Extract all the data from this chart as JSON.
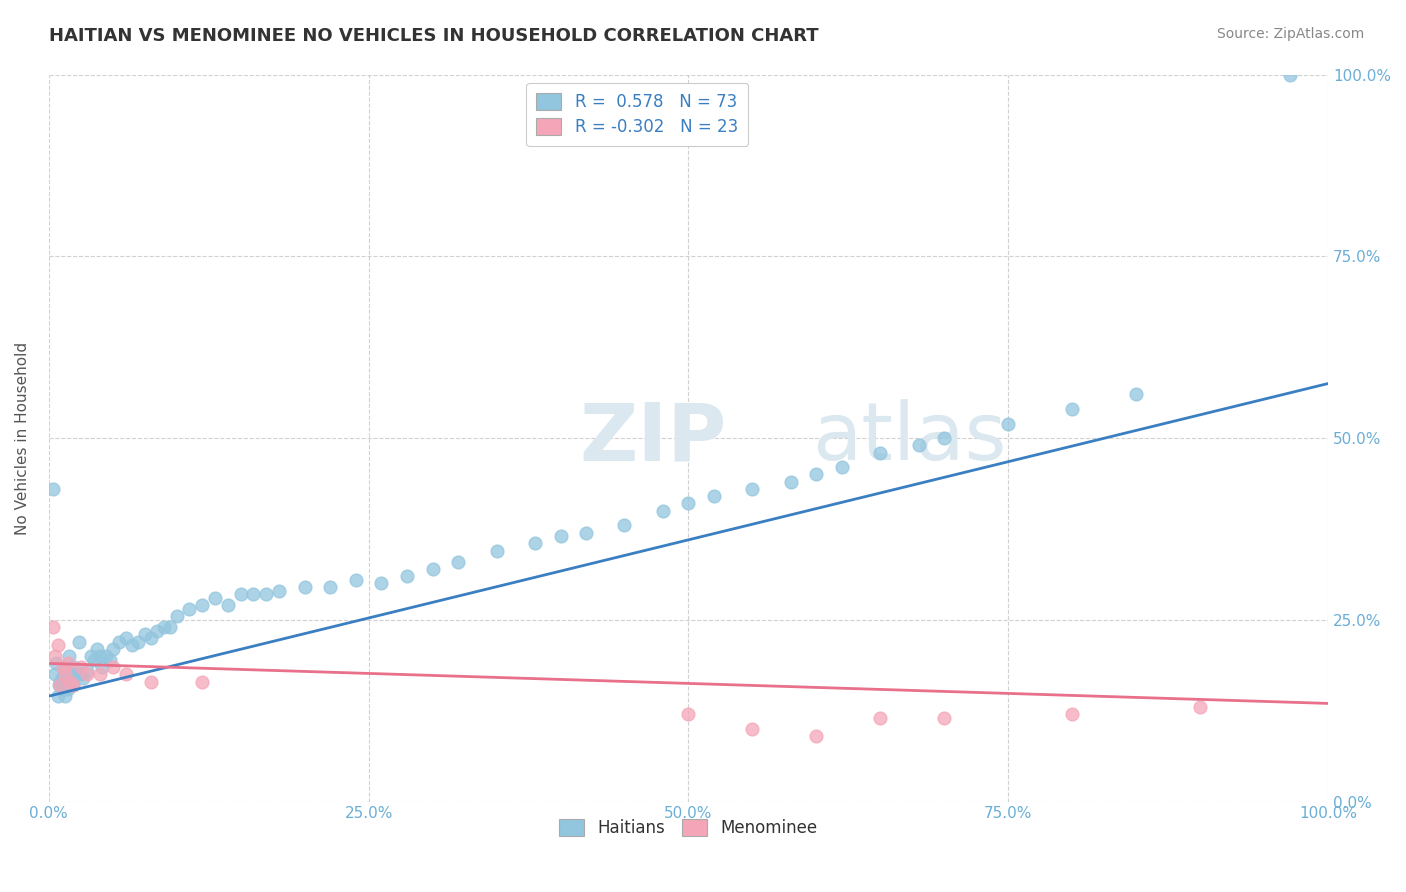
{
  "title": "HAITIAN VS MENOMINEE NO VEHICLES IN HOUSEHOLD CORRELATION CHART",
  "source": "Source: ZipAtlas.com",
  "ylabel": "No Vehicles in Household",
  "watermark_top": "ZIP",
  "watermark_bot": "atlas",
  "legend_r_blue": "R =  0.578",
  "legend_n_blue": "N = 73",
  "legend_r_pink": "R = -0.302",
  "legend_n_pink": "N = 23",
  "xlim": [
    0,
    1
  ],
  "ylim": [
    0,
    1
  ],
  "xticks": [
    0.0,
    0.25,
    0.5,
    0.75,
    1.0
  ],
  "yticks": [
    0.0,
    0.25,
    0.5,
    0.75,
    1.0
  ],
  "xticklabels": [
    "0.0%",
    "25.0%",
    "50.0%",
    "75.0%",
    "100.0%"
  ],
  "right_yticklabels": [
    "0.0%",
    "25.0%",
    "50.0%",
    "75.0%",
    "100.0%"
  ],
  "color_blue": "#92c5de",
  "color_pink": "#f4a6b8",
  "color_line_blue": "#3a7fc1",
  "color_line_pink": "#e8708a",
  "blue_x": [
    0.003,
    0.005,
    0.006,
    0.007,
    0.008,
    0.009,
    0.01,
    0.011,
    0.012,
    0.013,
    0.015,
    0.016,
    0.017,
    0.018,
    0.019,
    0.02,
    0.022,
    0.024,
    0.025,
    0.027,
    0.03,
    0.033,
    0.035,
    0.038,
    0.04,
    0.042,
    0.045,
    0.048,
    0.05,
    0.055,
    0.06,
    0.065,
    0.07,
    0.075,
    0.08,
    0.085,
    0.09,
    0.095,
    0.1,
    0.11,
    0.12,
    0.13,
    0.14,
    0.15,
    0.16,
    0.17,
    0.18,
    0.2,
    0.22,
    0.24,
    0.26,
    0.28,
    0.3,
    0.32,
    0.35,
    0.38,
    0.4,
    0.42,
    0.45,
    0.48,
    0.5,
    0.52,
    0.55,
    0.58,
    0.6,
    0.62,
    0.65,
    0.68,
    0.7,
    0.75,
    0.8,
    0.85,
    0.97
  ],
  "blue_y": [
    0.43,
    0.175,
    0.19,
    0.145,
    0.16,
    0.165,
    0.17,
    0.155,
    0.18,
    0.145,
    0.155,
    0.2,
    0.165,
    0.175,
    0.16,
    0.185,
    0.175,
    0.22,
    0.175,
    0.17,
    0.18,
    0.2,
    0.195,
    0.21,
    0.2,
    0.185,
    0.2,
    0.195,
    0.21,
    0.22,
    0.225,
    0.215,
    0.22,
    0.23,
    0.225,
    0.235,
    0.24,
    0.24,
    0.255,
    0.265,
    0.27,
    0.28,
    0.27,
    0.285,
    0.285,
    0.285,
    0.29,
    0.295,
    0.295,
    0.305,
    0.3,
    0.31,
    0.32,
    0.33,
    0.345,
    0.355,
    0.365,
    0.37,
    0.38,
    0.4,
    0.41,
    0.42,
    0.43,
    0.44,
    0.45,
    0.46,
    0.48,
    0.49,
    0.5,
    0.52,
    0.54,
    0.56,
    1.0
  ],
  "pink_x": [
    0.003,
    0.005,
    0.007,
    0.009,
    0.011,
    0.013,
    0.015,
    0.017,
    0.019,
    0.025,
    0.03,
    0.04,
    0.05,
    0.06,
    0.08,
    0.12,
    0.5,
    0.55,
    0.6,
    0.65,
    0.7,
    0.8,
    0.9
  ],
  "pink_y": [
    0.24,
    0.2,
    0.215,
    0.16,
    0.185,
    0.175,
    0.19,
    0.165,
    0.16,
    0.185,
    0.175,
    0.175,
    0.185,
    0.175,
    0.165,
    0.165,
    0.12,
    0.1,
    0.09,
    0.115,
    0.115,
    0.12,
    0.13
  ],
  "blue_line_x": [
    0.0,
    1.0
  ],
  "blue_line_y": [
    0.145,
    0.575
  ],
  "pink_line_x": [
    0.0,
    1.0
  ],
  "pink_line_y": [
    0.19,
    0.135
  ],
  "background_color": "#ffffff",
  "grid_color": "#cccccc",
  "title_color": "#333333",
  "tick_color": "#6baed6",
  "watermark_color": "#dce8f0"
}
